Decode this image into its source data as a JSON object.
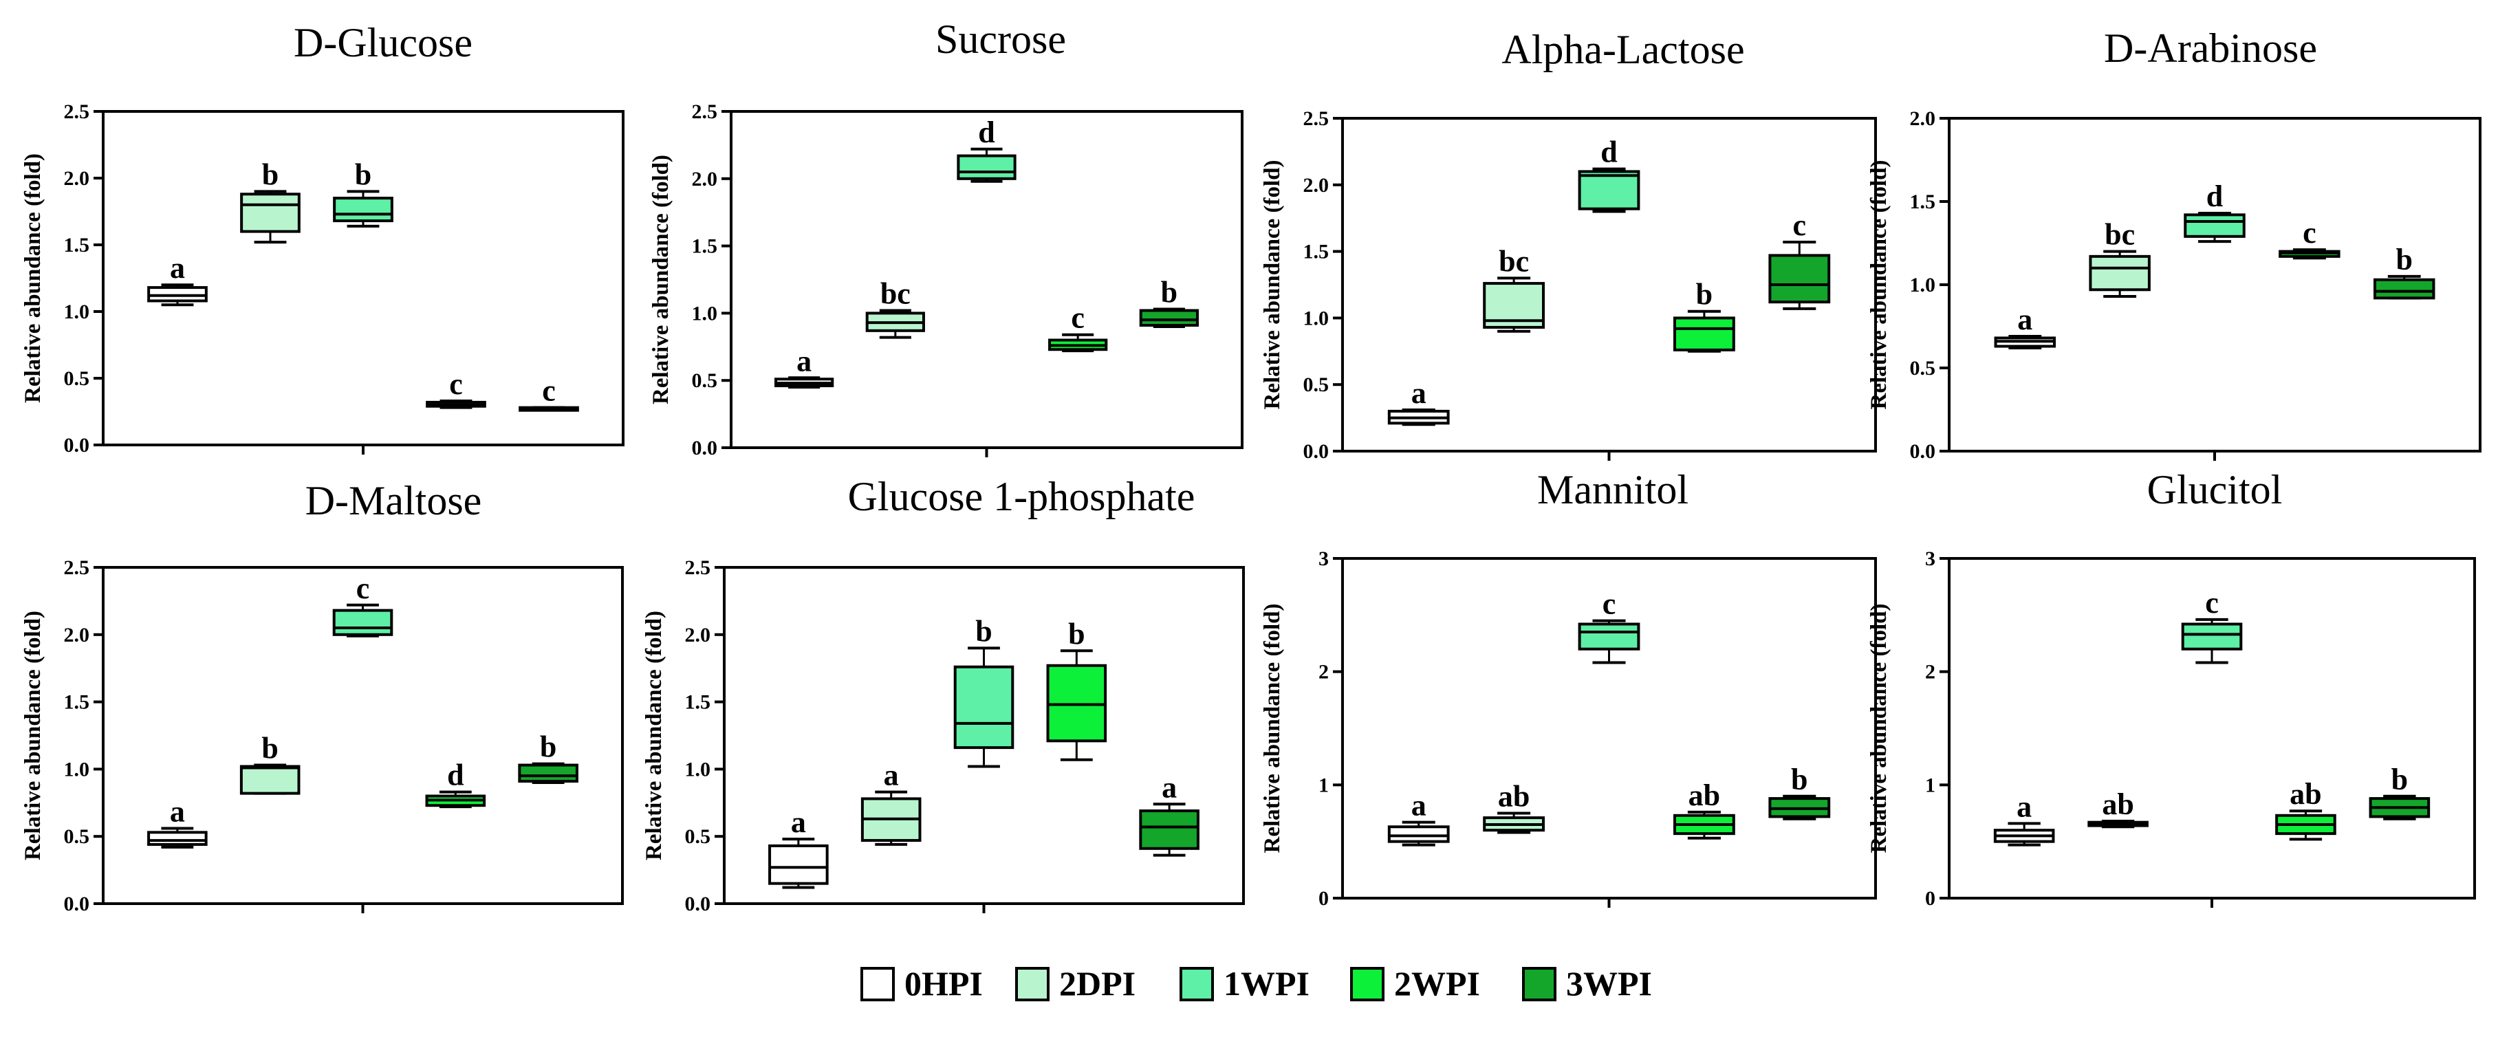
{
  "legend": [
    {
      "label": "0HPI",
      "color": "#ffffff"
    },
    {
      "label": "2DPI",
      "color": "#b8f5cf"
    },
    {
      "label": "1WPI",
      "color": "#5ef0a6"
    },
    {
      "label": "2WPI",
      "color": "#0cf03a"
    },
    {
      "label": "3WPI",
      "color": "#13a62b"
    }
  ],
  "chart_data": [
    {
      "type": "box",
      "title": "D-Glucose",
      "ylabel": "Relative abundance (fold)",
      "ylim": [
        0,
        2.5
      ],
      "yticks": [
        "0.0",
        "0.5",
        "1.0",
        "1.5",
        "2.0",
        "2.5"
      ],
      "categories": [
        "0HPI",
        "2DPI",
        "1WPI",
        "2WPI",
        "3WPI"
      ],
      "boxes": [
        {
          "min": 1.05,
          "q1": 1.08,
          "median": 1.12,
          "q3": 1.18,
          "max": 1.2,
          "letter": "a"
        },
        {
          "min": 1.52,
          "q1": 1.6,
          "median": 1.8,
          "q3": 1.88,
          "max": 1.9,
          "letter": "b"
        },
        {
          "min": 1.64,
          "q1": 1.68,
          "median": 1.73,
          "q3": 1.85,
          "max": 1.9,
          "letter": "b"
        },
        {
          "min": 0.28,
          "q1": 0.29,
          "median": 0.3,
          "q3": 0.32,
          "max": 0.33,
          "letter": "c"
        },
        {
          "min": 0.26,
          "q1": 0.26,
          "median": 0.27,
          "q3": 0.28,
          "max": 0.28,
          "letter": "c"
        }
      ]
    },
    {
      "type": "box",
      "title": "Sucrose",
      "ylabel": "Relative abundance (fold)",
      "ylim": [
        0,
        2.5
      ],
      "yticks": [
        "0.0",
        "0.5",
        "1.0",
        "1.5",
        "2.0",
        "2.5"
      ],
      "categories": [
        "0HPI",
        "2DPI",
        "1WPI",
        "2WPI",
        "3WPI"
      ],
      "boxes": [
        {
          "min": 0.45,
          "q1": 0.46,
          "median": 0.48,
          "q3": 0.51,
          "max": 0.52,
          "letter": "a"
        },
        {
          "min": 0.82,
          "q1": 0.87,
          "median": 0.93,
          "q3": 1.0,
          "max": 1.02,
          "letter": "bc"
        },
        {
          "min": 1.98,
          "q1": 2.0,
          "median": 2.05,
          "q3": 2.17,
          "max": 2.22,
          "letter": "d"
        },
        {
          "min": 0.72,
          "q1": 0.73,
          "median": 0.76,
          "q3": 0.8,
          "max": 0.84,
          "letter": "c"
        },
        {
          "min": 0.9,
          "q1": 0.91,
          "median": 0.95,
          "q3": 1.02,
          "max": 1.03,
          "letter": "b"
        }
      ]
    },
    {
      "type": "box",
      "title": "Alpha-Lactose",
      "ylabel": "Relative abundance (fold)",
      "ylim": [
        0,
        2.5
      ],
      "yticks": [
        "0.0",
        "0.5",
        "1.0",
        "1.5",
        "2.0",
        "2.5"
      ],
      "categories": [
        "0HPI",
        "2DPI",
        "1WPI",
        "2WPI",
        "3WPI"
      ],
      "boxes": [
        {
          "min": 0.2,
          "q1": 0.21,
          "median": 0.25,
          "q3": 0.3,
          "max": 0.31,
          "letter": "a"
        },
        {
          "min": 0.9,
          "q1": 0.93,
          "median": 0.98,
          "q3": 1.26,
          "max": 1.3,
          "letter": "bc"
        },
        {
          "min": 1.8,
          "q1": 1.82,
          "median": 2.07,
          "q3": 2.1,
          "max": 2.12,
          "letter": "d"
        },
        {
          "min": 0.75,
          "q1": 0.76,
          "median": 0.92,
          "q3": 1.0,
          "max": 1.05,
          "letter": "b"
        },
        {
          "min": 1.07,
          "q1": 1.12,
          "median": 1.25,
          "q3": 1.47,
          "max": 1.57,
          "letter": "c"
        }
      ]
    },
    {
      "type": "box",
      "title": "D-Arabinose",
      "ylabel": "Relative abundance (fold)",
      "ylim": [
        0,
        2.0
      ],
      "yticks": [
        "0.0",
        "0.5",
        "1.0",
        "1.5",
        "2.0"
      ],
      "categories": [
        "0HPI",
        "2DPI",
        "1WPI",
        "2WPI",
        "3WPI"
      ],
      "boxes": [
        {
          "min": 0.62,
          "q1": 0.63,
          "median": 0.66,
          "q3": 0.68,
          "max": 0.69,
          "letter": "a"
        },
        {
          "min": 0.93,
          "q1": 0.97,
          "median": 1.1,
          "q3": 1.17,
          "max": 1.2,
          "letter": "bc"
        },
        {
          "min": 1.26,
          "q1": 1.29,
          "median": 1.38,
          "q3": 1.42,
          "max": 1.43,
          "letter": "d"
        },
        {
          "min": 1.16,
          "q1": 1.17,
          "median": 1.19,
          "q3": 1.2,
          "max": 1.21,
          "letter": "c"
        },
        {
          "min": 0.92,
          "q1": 0.92,
          "median": 0.96,
          "q3": 1.03,
          "max": 1.05,
          "letter": "b"
        }
      ]
    },
    {
      "type": "box",
      "title": "D-Maltose",
      "ylabel": "Relative abundance (fold)",
      "ylim": [
        0,
        2.5
      ],
      "yticks": [
        "0.0",
        "0.5",
        "1.0",
        "1.5",
        "2.0",
        "2.5"
      ],
      "categories": [
        "0HPI",
        "2DPI",
        "1WPI",
        "2WPI",
        "3WPI"
      ],
      "boxes": [
        {
          "min": 0.42,
          "q1": 0.44,
          "median": 0.47,
          "q3": 0.53,
          "max": 0.56,
          "letter": "a"
        },
        {
          "min": 0.82,
          "q1": 0.82,
          "median": 1.01,
          "q3": 1.02,
          "max": 1.03,
          "letter": "b"
        },
        {
          "min": 1.99,
          "q1": 2.0,
          "median": 2.05,
          "q3": 2.18,
          "max": 2.22,
          "letter": "c"
        },
        {
          "min": 0.72,
          "q1": 0.73,
          "median": 0.77,
          "q3": 0.8,
          "max": 0.83,
          "letter": "d"
        },
        {
          "min": 0.9,
          "q1": 0.91,
          "median": 0.95,
          "q3": 1.03,
          "max": 1.04,
          "letter": "b"
        }
      ]
    },
    {
      "type": "box",
      "title": "Glucose 1-phosphate",
      "ylabel": "Relative abundance (fold)",
      "ylim": [
        0,
        2.5
      ],
      "yticks": [
        "0.0",
        "0.5",
        "1.0",
        "1.5",
        "2.0",
        "2.5"
      ],
      "categories": [
        "0HPI",
        "2DPI",
        "1WPI",
        "2WPI",
        "3WPI"
      ],
      "boxes": [
        {
          "min": 0.12,
          "q1": 0.15,
          "median": 0.27,
          "q3": 0.43,
          "max": 0.48,
          "letter": "a"
        },
        {
          "min": 0.44,
          "q1": 0.47,
          "median": 0.63,
          "q3": 0.78,
          "max": 0.83,
          "letter": "a"
        },
        {
          "min": 1.02,
          "q1": 1.16,
          "median": 1.34,
          "q3": 1.76,
          "max": 1.9,
          "letter": "b"
        },
        {
          "min": 1.07,
          "q1": 1.21,
          "median": 1.48,
          "q3": 1.77,
          "max": 1.88,
          "letter": "b"
        },
        {
          "min": 0.36,
          "q1": 0.41,
          "median": 0.57,
          "q3": 0.69,
          "max": 0.74,
          "letter": "a"
        }
      ]
    },
    {
      "type": "box",
      "title": "Mannitol",
      "ylabel": "Relative abundance (fold)",
      "ylim": [
        0,
        3
      ],
      "yticks": [
        "0",
        "1",
        "2",
        "3"
      ],
      "categories": [
        "0HPI",
        "2DPI",
        "1WPI",
        "2WPI",
        "3WPI"
      ],
      "boxes": [
        {
          "min": 0.47,
          "q1": 0.5,
          "median": 0.55,
          "q3": 0.63,
          "max": 0.67,
          "letter": "a"
        },
        {
          "min": 0.58,
          "q1": 0.6,
          "median": 0.65,
          "q3": 0.71,
          "max": 0.75,
          "letter": "ab"
        },
        {
          "min": 2.08,
          "q1": 2.2,
          "median": 2.35,
          "q3": 2.42,
          "max": 2.45,
          "letter": "c"
        },
        {
          "min": 0.53,
          "q1": 0.57,
          "median": 0.65,
          "q3": 0.73,
          "max": 0.76,
          "letter": "ab"
        },
        {
          "min": 0.7,
          "q1": 0.72,
          "median": 0.79,
          "q3": 0.88,
          "max": 0.9,
          "letter": "b"
        }
      ]
    },
    {
      "type": "box",
      "title": "Glucitol",
      "ylabel": "Relative abundance (fold)",
      "ylim": [
        0,
        3
      ],
      "yticks": [
        "0",
        "1",
        "2",
        "3"
      ],
      "categories": [
        "0HPI",
        "2DPI",
        "1WPI",
        "2WPI",
        "3WPI"
      ],
      "boxes": [
        {
          "min": 0.47,
          "q1": 0.5,
          "median": 0.55,
          "q3": 0.6,
          "max": 0.66,
          "letter": "a"
        },
        {
          "min": 0.63,
          "q1": 0.64,
          "median": 0.65,
          "q3": 0.67,
          "max": 0.68,
          "letter": "ab"
        },
        {
          "min": 2.08,
          "q1": 2.2,
          "median": 2.33,
          "q3": 2.42,
          "max": 2.46,
          "letter": "c"
        },
        {
          "min": 0.52,
          "q1": 0.57,
          "median": 0.65,
          "q3": 0.73,
          "max": 0.77,
          "letter": "ab"
        },
        {
          "min": 0.7,
          "q1": 0.72,
          "median": 0.8,
          "q3": 0.88,
          "max": 0.9,
          "letter": "b"
        }
      ]
    }
  ]
}
